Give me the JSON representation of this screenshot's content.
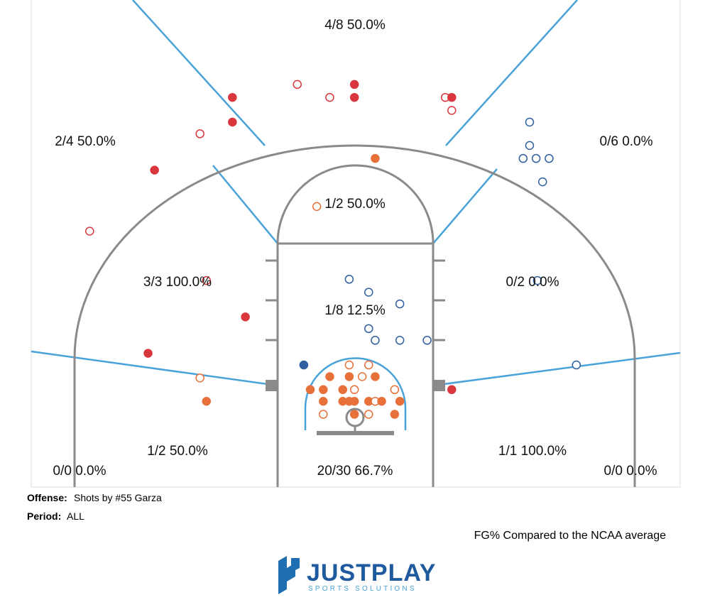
{
  "chart_data": {
    "type": "scatter",
    "xlim": [
      0,
      50
    ],
    "ylim": [
      0,
      37.5
    ],
    "zones": [
      "4/8 50.0%",
      "2/4 50.0%",
      "0/6 0.0%",
      "1/2 50.0%",
      "3/3 100.0%",
      "1/8 12.5%",
      "0/2 0.0%",
      "1/2 50.0%",
      "1/1 100.0%",
      "0/0 0.0%",
      "20/30 66.7%",
      "0/0 0.0%"
    ],
    "series": [
      {
        "color": "#d9363e",
        "x": [
          15.5,
          20.5,
          23.0,
          24.9,
          24.9,
          31.9,
          32.4,
          32.4,
          15.5,
          13.0,
          9.5,
          4.5,
          13.5,
          16.5,
          9.0,
          32.4
        ],
        "y": [
          30.0,
          31.0,
          30.0,
          31.0,
          30.0,
          30.0,
          30.0,
          29.0,
          28.1,
          27.2,
          24.4,
          19.7,
          15.9,
          13.1,
          10.3,
          7.5
        ],
        "filled": [
          true,
          false,
          false,
          true,
          true,
          false,
          true,
          false,
          true,
          false,
          true,
          false,
          false,
          true,
          true,
          true
        ]
      },
      {
        "color": "#e8703a",
        "x": [
          26.5,
          22.0,
          13.0,
          13.5,
          24.5,
          26.0,
          23.0,
          24.5,
          25.5,
          26.5,
          21.5,
          22.5,
          24.0,
          24.9,
          28.0,
          22.5,
          24.0,
          24.5,
          24.9,
          26.0,
          26.5,
          27.0,
          28.4,
          22.5,
          24.9,
          26.0,
          28.0
        ],
        "y": [
          25.3,
          21.6,
          8.4,
          6.6,
          9.4,
          9.4,
          8.5,
          8.5,
          8.5,
          8.5,
          7.5,
          7.5,
          7.5,
          7.5,
          7.5,
          6.6,
          6.6,
          6.6,
          6.6,
          6.6,
          6.6,
          6.6,
          6.6,
          5.6,
          5.6,
          5.6,
          5.6
        ],
        "filled": [
          true,
          false,
          false,
          true,
          false,
          false,
          true,
          true,
          false,
          true,
          true,
          true,
          true,
          false,
          false,
          true,
          true,
          true,
          true,
          true,
          false,
          true,
          true,
          false,
          true,
          false,
          true
        ]
      },
      {
        "color": "#2f5f9e",
        "x": [
          38.4,
          38.4,
          37.9,
          38.9,
          39.9,
          39.4,
          24.5,
          26.0,
          28.4,
          26.0,
          26.5,
          28.4,
          30.5,
          21.0,
          39.0,
          42.0
        ],
        "y": [
          28.1,
          26.3,
          25.3,
          25.3,
          25.3,
          23.5,
          16.0,
          15.0,
          14.1,
          12.2,
          11.3,
          11.3,
          11.3,
          9.4,
          15.9,
          9.4
        ],
        "filled": [
          false,
          false,
          false,
          false,
          false,
          false,
          false,
          false,
          false,
          false,
          false,
          false,
          false,
          true,
          false,
          false
        ]
      }
    ]
  },
  "footer": {
    "offense_label": "Offense:",
    "offense": "Shots by #55 Garza",
    "period_label": "Period:",
    "period": "ALL",
    "note": "FG% Compared to the NCAA average"
  },
  "logo": {
    "name": "JUSTPLAY",
    "tagline": "SPORTS SOLUTIONS"
  }
}
